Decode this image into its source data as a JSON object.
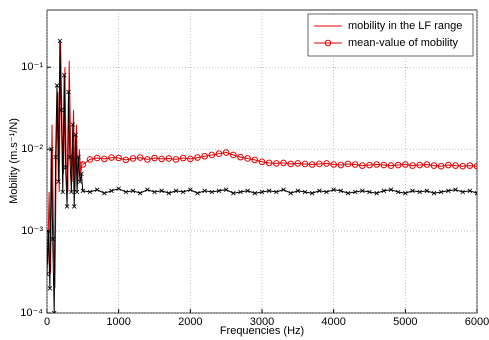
{
  "chart_data": {
    "type": "line",
    "xlabel": "Frequencies (Hz)",
    "ylabel": "Mobility (m.s⁻¹/N)",
    "xlim": [
      0,
      6000
    ],
    "xticks": [
      0,
      1000,
      2000,
      3000,
      4000,
      5000,
      6000
    ],
    "ylim": [
      0.0001,
      0.5
    ],
    "yscale": "log",
    "yticks": [
      {
        "value": 0.0001,
        "label": "10⁻⁴"
      },
      {
        "value": 0.001,
        "label": "10⁻³"
      },
      {
        "value": 0.01,
        "label": "10⁻²"
      },
      {
        "value": 0.1,
        "label": "10⁻¹"
      }
    ],
    "grid": true,
    "legend": "upper right",
    "series": [
      {
        "name": "mobility in the LF range",
        "color": "#e00000",
        "marker": "none",
        "x": [
          10,
          30,
          50,
          70,
          90,
          110,
          130,
          150,
          170,
          190,
          210,
          230,
          250,
          270,
          290,
          310,
          330,
          350,
          370,
          390,
          410,
          430,
          450,
          470,
          490
        ],
        "values": [
          0.0004,
          0.003,
          0.0003,
          0.02,
          0.001,
          0.0002,
          0.01,
          0.05,
          0.003,
          0.2,
          0.02,
          0.005,
          0.1,
          0.005,
          0.003,
          0.12,
          0.01,
          0.004,
          0.03,
          0.003,
          0.02,
          0.004,
          0.01,
          0.005,
          0.007
        ]
      },
      {
        "name": "mean-value of mobility",
        "color": "#e00000",
        "marker": "o",
        "x": [
          500,
          600,
          700,
          800,
          900,
          1000,
          1100,
          1200,
          1300,
          1400,
          1500,
          1600,
          1700,
          1800,
          1900,
          2000,
          2100,
          2200,
          2300,
          2400,
          2500,
          2600,
          2700,
          2800,
          2900,
          3000,
          3100,
          3200,
          3300,
          3400,
          3500,
          3600,
          3700,
          3800,
          3900,
          4000,
          4100,
          4200,
          4300,
          4400,
          4500,
          4600,
          4700,
          4800,
          4900,
          5000,
          5100,
          5200,
          5300,
          5400,
          5500,
          5600,
          5700,
          5800,
          5900,
          6000
        ],
        "values": [
          0.0065,
          0.0075,
          0.0078,
          0.0076,
          0.0079,
          0.0078,
          0.0074,
          0.0077,
          0.0079,
          0.0075,
          0.0078,
          0.0076,
          0.0077,
          0.0075,
          0.0078,
          0.0076,
          0.0079,
          0.0082,
          0.0085,
          0.0088,
          0.0091,
          0.0085,
          0.008,
          0.0077,
          0.0074,
          0.007,
          0.0068,
          0.0067,
          0.0068,
          0.0066,
          0.0067,
          0.0066,
          0.0065,
          0.0066,
          0.0067,
          0.0065,
          0.0064,
          0.0066,
          0.0065,
          0.0063,
          0.0064,
          0.0065,
          0.0064,
          0.0063,
          0.0064,
          0.0065,
          0.0063,
          0.0064,
          0.0065,
          0.0063,
          0.0062,
          0.0064,
          0.0063,
          0.0062,
          0.0063,
          0.0062
        ]
      },
      {
        "color": "#000000",
        "marker": "x",
        "x": [
          0,
          20,
          40,
          60,
          80,
          100,
          120,
          140,
          160,
          180,
          200,
          220,
          240,
          260,
          280,
          300,
          320,
          340,
          360,
          380,
          400,
          420,
          440,
          460,
          480,
          500,
          600,
          700,
          800,
          900,
          1000,
          1100,
          1200,
          1300,
          1400,
          1500,
          1600,
          1700,
          1800,
          1900,
          2000,
          2100,
          2200,
          2300,
          2400,
          2500,
          2600,
          2700,
          2800,
          2900,
          3000,
          3100,
          3200,
          3300,
          3400,
          3500,
          3600,
          3700,
          3800,
          3900,
          4000,
          4100,
          4200,
          4300,
          4400,
          4500,
          4600,
          4700,
          4800,
          4900,
          5000,
          5100,
          5200,
          5300,
          5400,
          5500,
          5600,
          5700,
          5800,
          5900,
          6000
        ],
        "values": [
          0.0003,
          0.001,
          0.0002,
          0.01,
          0.0008,
          0.0001,
          0.008,
          0.06,
          0.004,
          0.21,
          0.03,
          0.003,
          0.08,
          0.006,
          0.002,
          0.05,
          0.008,
          0.003,
          0.02,
          0.002,
          0.015,
          0.003,
          0.008,
          0.004,
          0.005,
          0.0031,
          0.003,
          0.0032,
          0.0029,
          0.0031,
          0.0033,
          0.003,
          0.0031,
          0.0029,
          0.0032,
          0.003,
          0.0031,
          0.0029,
          0.0031,
          0.003,
          0.0032,
          0.0029,
          0.0031,
          0.003,
          0.0031,
          0.0032,
          0.0029,
          0.003,
          0.0031,
          0.0029,
          0.003,
          0.0031,
          0.003,
          0.0032,
          0.0029,
          0.0031,
          0.003,
          0.0029,
          0.0031,
          0.003,
          0.0032,
          0.0031,
          0.0029,
          0.003,
          0.0031,
          0.003,
          0.0029,
          0.0031,
          0.0032,
          0.003,
          0.0029,
          0.0031,
          0.003,
          0.0031,
          0.0029,
          0.003,
          0.0031,
          0.0032,
          0.003,
          0.0031,
          0.0029
        ]
      }
    ]
  }
}
